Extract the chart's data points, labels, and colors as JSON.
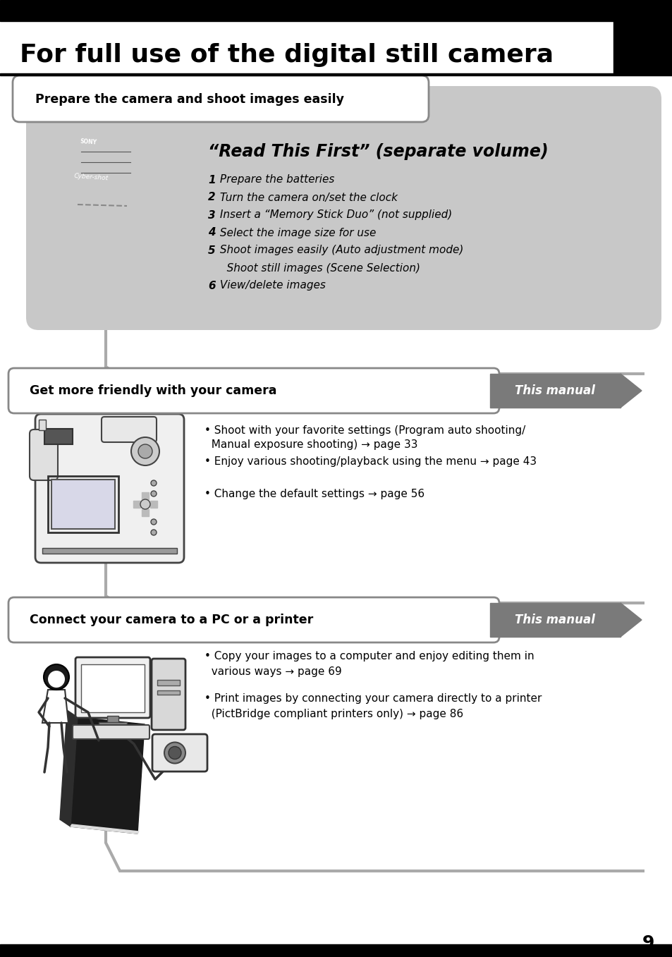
{
  "page_bg": "#ffffff",
  "header_text": "For full use of the digital still camera",
  "section1_label": "Prepare the camera and shoot images easily",
  "section1_content_bg": "#c8c8c8",
  "section1_title": "“Read This First” (separate volume)",
  "section1_items": [
    [
      "1",
      " Prepare the batteries"
    ],
    [
      "2",
      " Turn the camera on/set the clock"
    ],
    [
      "3",
      " Insert a “Memory Stick Duo” (not supplied)"
    ],
    [
      "4",
      " Select the image size for use"
    ],
    [
      "5",
      " Shoot images easily (Auto adjustment mode)"
    ],
    [
      "",
      "   Shoot still images (Scene Selection)"
    ],
    [
      "6",
      " View/delete images"
    ]
  ],
  "section2_label": "Get more friendly with your camera",
  "section2_badge": "This manual",
  "section2_items": [
    "• Shoot with your favorite settings (Program auto shooting/\n  Manual exposure shooting) → page 33",
    "• Enjoy various shooting/playback using the menu → page 43",
    "• Change the default settings → page 56"
  ],
  "section3_label": "Connect your camera to a PC or a printer",
  "section3_badge": "This manual",
  "section3_items": [
    "• Copy your images to a computer and enjoy editing them in\n  various ways → page 69",
    "• Print images by connecting your camera directly to a printer\n  (PictBridge compliant printers only) → page 86"
  ],
  "page_number": "9",
  "badge_bg": "#7a7a7a",
  "connector_color": "#aaaaaa",
  "label_border": "#888888",
  "s1_items_bold_color": "#000000",
  "s1_items_italic_color": "#000000"
}
